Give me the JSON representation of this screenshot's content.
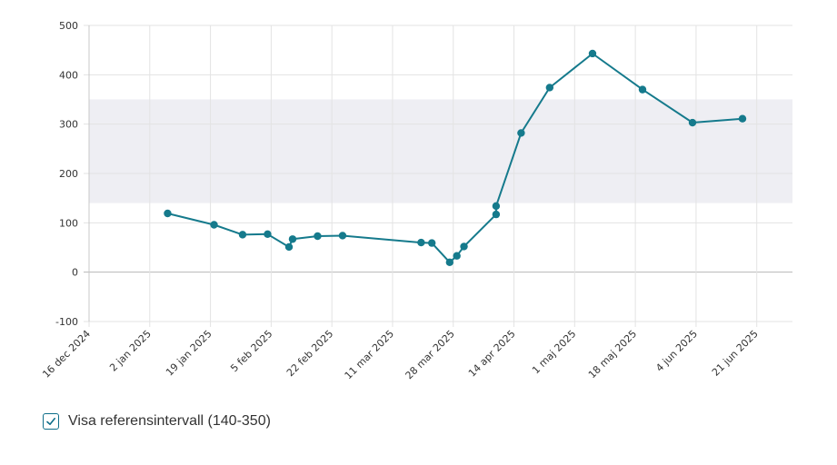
{
  "chart_data": {
    "type": "line",
    "y_ticks": [
      500,
      400,
      300,
      200,
      100,
      0,
      -100
    ],
    "ylim": [
      -100,
      500
    ],
    "grid": true,
    "x_ticks": [
      {
        "date": "2024-12-16",
        "label": "16 dec 2024"
      },
      {
        "date": "2025-01-02",
        "label": "2 jan 2025"
      },
      {
        "date": "2025-01-19",
        "label": "19 jan 2025"
      },
      {
        "date": "2025-02-05",
        "label": "5 feb 2025"
      },
      {
        "date": "2025-02-22",
        "label": "22 feb 2025"
      },
      {
        "date": "2025-03-11",
        "label": "11 mar 2025"
      },
      {
        "date": "2025-03-28",
        "label": "28 mar 2025"
      },
      {
        "date": "2025-04-14",
        "label": "14 apr 2025"
      },
      {
        "date": "2025-05-01",
        "label": "1 maj 2025"
      },
      {
        "date": "2025-05-18",
        "label": "18 maj 2025"
      },
      {
        "date": "2025-06-04",
        "label": "4 jun 2025"
      },
      {
        "date": "2025-06-21",
        "label": "21 jun 2025"
      }
    ],
    "xlim": [
      "2024-12-16",
      "2025-07-01"
    ],
    "reference_band": [
      140,
      350
    ],
    "series": [
      {
        "color": "#157a8c",
        "points": [
          {
            "x": "2025-01-07",
            "y": 119
          },
          {
            "x": "2025-01-20",
            "y": 96
          },
          {
            "x": "2025-01-28",
            "y": 76
          },
          {
            "x": "2025-02-04",
            "y": 77
          },
          {
            "x": "2025-02-10",
            "y": 51
          },
          {
            "x": "2025-02-11",
            "y": 67
          },
          {
            "x": "2025-02-18",
            "y": 73
          },
          {
            "x": "2025-02-25",
            "y": 74
          },
          {
            "x": "2025-03-19",
            "y": 60
          },
          {
            "x": "2025-03-22",
            "y": 59
          },
          {
            "x": "2025-03-27",
            "y": 20
          },
          {
            "x": "2025-03-29",
            "y": 33
          },
          {
            "x": "2025-03-31",
            "y": 52
          },
          {
            "x": "2025-04-09",
            "y": 117
          },
          {
            "x": "2025-04-09",
            "y": 134
          },
          {
            "x": "2025-04-16",
            "y": 282
          },
          {
            "x": "2025-04-24",
            "y": 374
          },
          {
            "x": "2025-05-06",
            "y": 443
          },
          {
            "x": "2025-05-20",
            "y": 370
          },
          {
            "x": "2025-06-03",
            "y": 303
          },
          {
            "x": "2025-06-17",
            "y": 311
          }
        ]
      }
    ]
  },
  "reference_toggle": {
    "label": "Visa referensintervall (140-350)",
    "checked": true
  }
}
